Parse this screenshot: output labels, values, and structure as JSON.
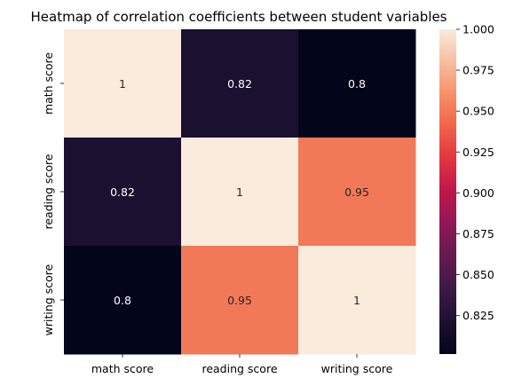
{
  "chart_data": {
    "type": "heatmap",
    "title": "Heatmap of correlation coefficients between student variables",
    "xlabel": "",
    "ylabel": "",
    "x_categories": [
      "math score",
      "reading score",
      "writing score"
    ],
    "y_categories": [
      "math score",
      "reading score",
      "writing score"
    ],
    "values": [
      [
        1,
        0.82,
        0.8
      ],
      [
        0.82,
        1,
        0.95
      ],
      [
        0.8,
        0.95,
        1
      ]
    ],
    "annotations": [
      [
        "1",
        "0.82",
        "0.8"
      ],
      [
        "0.82",
        "1",
        "0.95"
      ],
      [
        "0.8",
        "0.95",
        "1"
      ]
    ],
    "colorbar": {
      "min": 0.8015,
      "max": 1.0,
      "ticks": [
        0.825,
        0.85,
        0.875,
        0.9,
        0.925,
        0.95,
        0.975,
        1.0
      ],
      "tick_labels": [
        "0.825",
        "0.850",
        "0.875",
        "0.900",
        "0.925",
        "0.950",
        "0.975",
        "1.000"
      ],
      "colormap": "rocket"
    }
  }
}
